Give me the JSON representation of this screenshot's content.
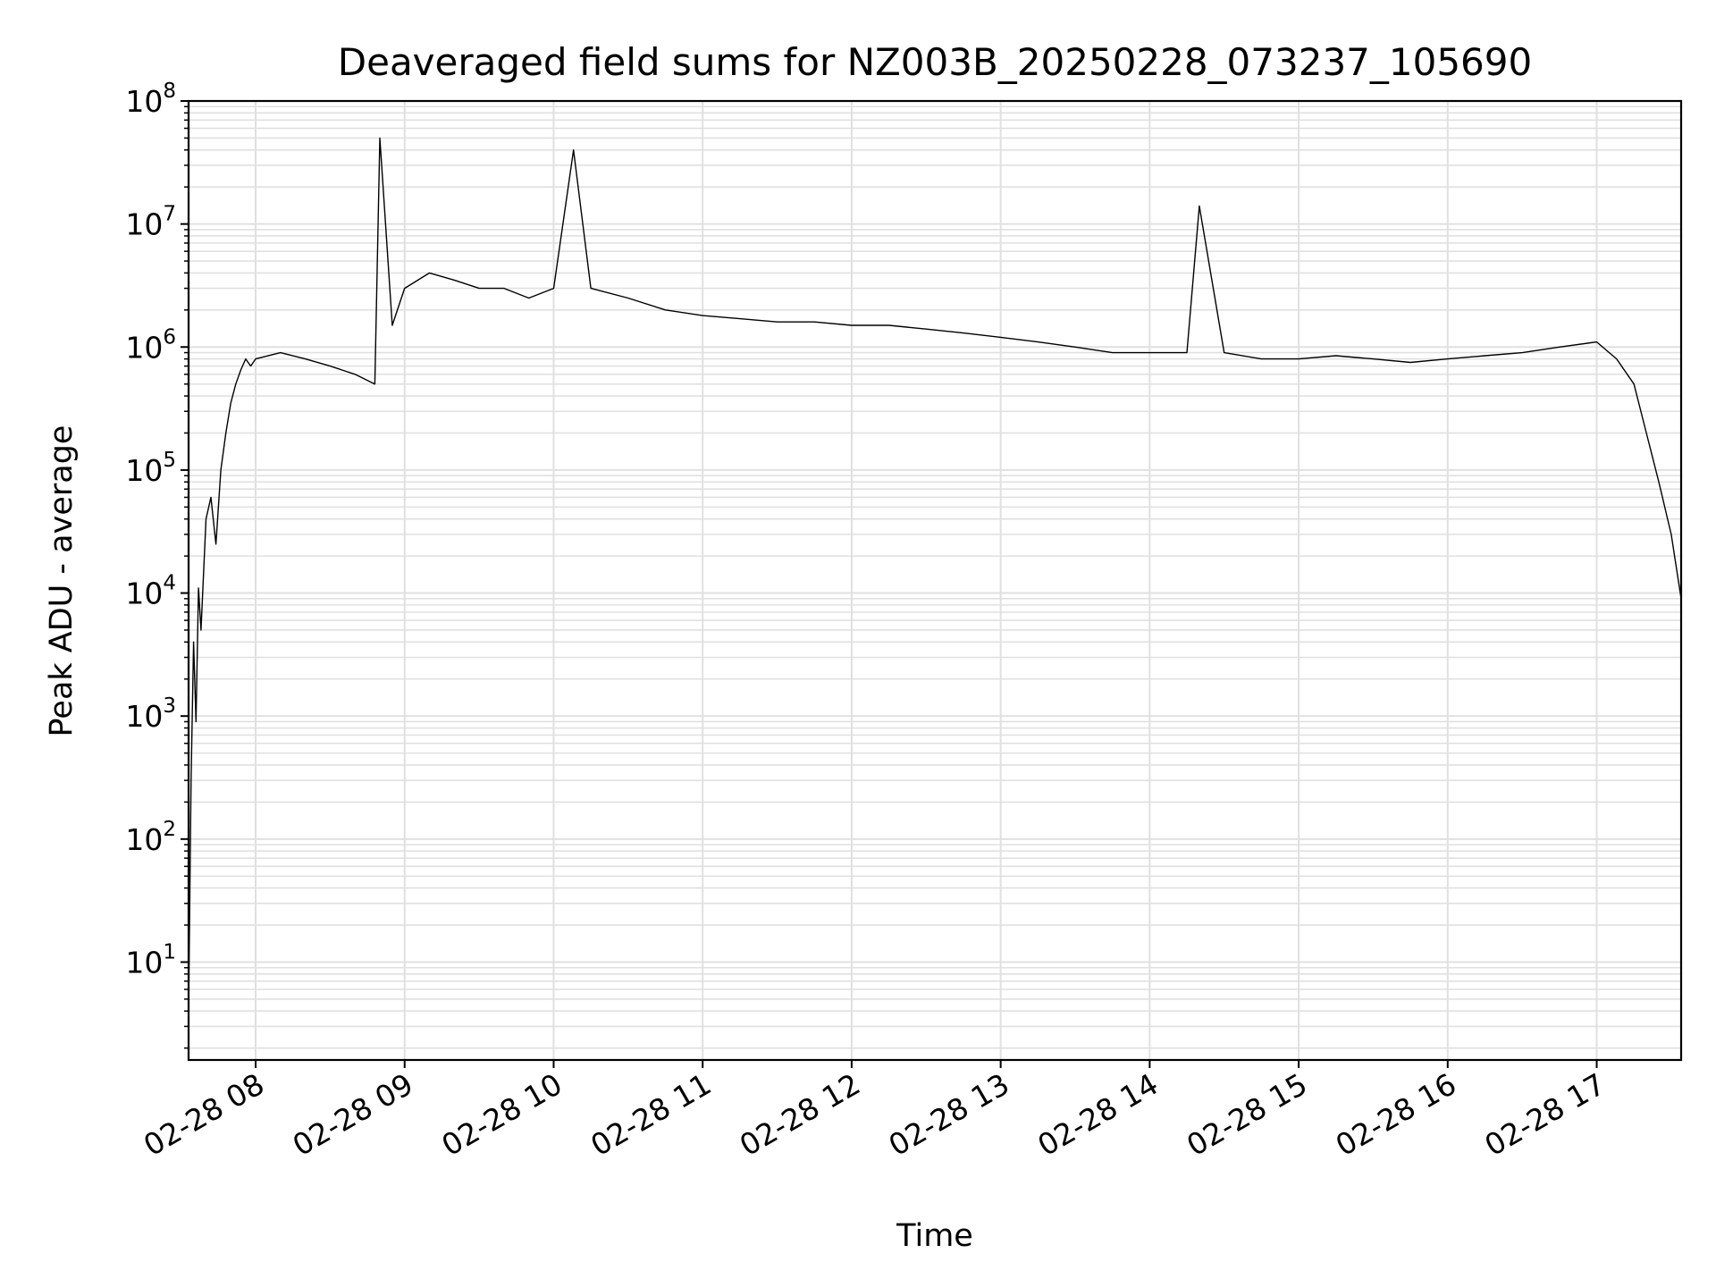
{
  "chart_data": {
    "type": "line",
    "title": "Deaveraged field sums for NZ003B_20250228_073237_105690",
    "xlabel": "Time",
    "ylabel": "Peak ADU - average",
    "yscale": "log",
    "ylim": [
      1.6,
      100000000
    ],
    "xlim": [
      "2025-02-28 07:33",
      "2025-02-28 17:34"
    ],
    "x_ticks": [
      {
        "value": "2025-02-28 08:00",
        "label": "02-28 08"
      },
      {
        "value": "2025-02-28 09:00",
        "label": "02-28 09"
      },
      {
        "value": "2025-02-28 10:00",
        "label": "02-28 10"
      },
      {
        "value": "2025-02-28 11:00",
        "label": "02-28 11"
      },
      {
        "value": "2025-02-28 12:00",
        "label": "02-28 12"
      },
      {
        "value": "2025-02-28 13:00",
        "label": "02-28 13"
      },
      {
        "value": "2025-02-28 14:00",
        "label": "02-28 14"
      },
      {
        "value": "2025-02-28 15:00",
        "label": "02-28 15"
      },
      {
        "value": "2025-02-28 16:00",
        "label": "02-28 16"
      },
      {
        "value": "2025-02-28 17:00",
        "label": "02-28 17"
      }
    ],
    "y_ticks": [
      {
        "value": 10,
        "base": "10",
        "exp": "1"
      },
      {
        "value": 100,
        "base": "10",
        "exp": "2"
      },
      {
        "value": 1000,
        "base": "10",
        "exp": "3"
      },
      {
        "value": 10000,
        "base": "10",
        "exp": "4"
      },
      {
        "value": 100000,
        "base": "10",
        "exp": "5"
      },
      {
        "value": 1000000,
        "base": "10",
        "exp": "6"
      },
      {
        "value": 10000000,
        "base": "10",
        "exp": "7"
      },
      {
        "value": 100000000,
        "base": "10",
        "exp": "8"
      }
    ],
    "grid": true,
    "line_color": "#000000",
    "grid_color": "#e0e0e0",
    "series": [
      {
        "x": [
          "2025-02-28 07:33",
          "2025-02-28 07:34",
          "2025-02-28 07:35",
          "2025-02-28 07:36",
          "2025-02-28 07:37",
          "2025-02-28 07:38",
          "2025-02-28 07:40",
          "2025-02-28 07:42",
          "2025-02-28 07:44",
          "2025-02-28 07:46",
          "2025-02-28 07:48",
          "2025-02-28 07:50",
          "2025-02-28 07:52",
          "2025-02-28 07:54",
          "2025-02-28 07:56",
          "2025-02-28 07:58",
          "2025-02-28 08:00",
          "2025-02-28 08:10",
          "2025-02-28 08:20",
          "2025-02-28 08:30",
          "2025-02-28 08:40",
          "2025-02-28 08:48",
          "2025-02-28 08:50",
          "2025-02-28 08:55",
          "2025-02-28 09:00",
          "2025-02-28 09:10",
          "2025-02-28 09:20",
          "2025-02-28 09:30",
          "2025-02-28 09:40",
          "2025-02-28 09:50",
          "2025-02-28 10:00",
          "2025-02-28 10:08",
          "2025-02-28 10:15",
          "2025-02-28 10:30",
          "2025-02-28 10:45",
          "2025-02-28 11:00",
          "2025-02-28 11:15",
          "2025-02-28 11:30",
          "2025-02-28 11:45",
          "2025-02-28 12:00",
          "2025-02-28 12:15",
          "2025-02-28 12:30",
          "2025-02-28 12:45",
          "2025-02-28 13:00",
          "2025-02-28 13:15",
          "2025-02-28 13:30",
          "2025-02-28 13:45",
          "2025-02-28 14:00",
          "2025-02-28 14:15",
          "2025-02-28 14:20",
          "2025-02-28 14:30",
          "2025-02-28 14:45",
          "2025-02-28 15:00",
          "2025-02-28 15:15",
          "2025-02-28 15:30",
          "2025-02-28 15:45",
          "2025-02-28 16:00",
          "2025-02-28 16:15",
          "2025-02-28 16:30",
          "2025-02-28 16:45",
          "2025-02-28 17:00",
          "2025-02-28 17:08",
          "2025-02-28 17:15",
          "2025-02-28 17:20",
          "2025-02-28 17:25",
          "2025-02-28 17:30",
          "2025-02-28 17:34"
        ],
        "y": [
          4,
          300,
          4000,
          900,
          11000,
          5000,
          40000,
          60000,
          25000,
          100000,
          200000,
          350000,
          500000,
          650000,
          800000,
          700000,
          800000,
          900000,
          800000,
          700000,
          600000,
          500000,
          50000000,
          1500000,
          3000000,
          4000000,
          3500000,
          3000000,
          3000000,
          2500000,
          3000000,
          40000000,
          3000000,
          2500000,
          2000000,
          1800000,
          1700000,
          1600000,
          1600000,
          1500000,
          1500000,
          1400000,
          1300000,
          1200000,
          1100000,
          1000000,
          900000,
          900000,
          900000,
          14000000,
          900000,
          800000,
          800000,
          850000,
          800000,
          750000,
          800000,
          850000,
          900000,
          1000000,
          1100000,
          800000,
          500000,
          200000,
          80000,
          30000,
          9000
        ]
      }
    ]
  }
}
